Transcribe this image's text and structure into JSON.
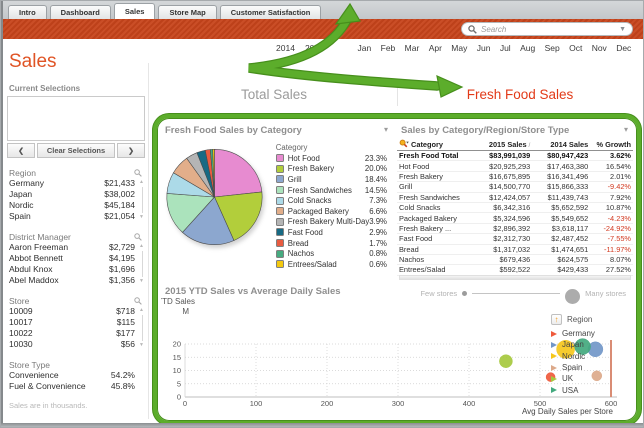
{
  "icons": {
    "caret_down": "▾",
    "dropdown_arrow": "▼",
    "chevron_left": "❮",
    "chevron_right": "❯",
    "scroll_up": "▲",
    "scroll_down": "▼",
    "sort_ascending": "/",
    "region_legend_arrow": "↑"
  },
  "window": {
    "tabs": [
      {
        "label": "Intro",
        "active": false
      },
      {
        "label": "Dashboard",
        "active": false
      },
      {
        "label": "Sales",
        "active": true
      },
      {
        "label": "Store Map",
        "active": false
      },
      {
        "label": "Customer Satisfaction",
        "active": false
      }
    ],
    "search": {
      "placeholder": "Search"
    }
  },
  "period": {
    "years": [
      "2014",
      "2015"
    ],
    "months": [
      "Jan",
      "Feb",
      "Mar",
      "Apr",
      "May",
      "Jun",
      "Jul",
      "Aug",
      "Sep",
      "Oct",
      "Nov",
      "Dec"
    ]
  },
  "sidebar": {
    "page_title": "Sales",
    "current_selections": {
      "label": "Current Selections",
      "clear_button": "Clear Selections"
    },
    "sections": [
      {
        "title": "Region",
        "searchable": true,
        "scrollable": true,
        "items": [
          {
            "label": "Germany",
            "value": "$21,433"
          },
          {
            "label": "Japan",
            "value": "$38,002"
          },
          {
            "label": "Nordic",
            "value": "$45,184"
          },
          {
            "label": "Spain",
            "value": "$21,054"
          }
        ]
      },
      {
        "title": "District Manager",
        "searchable": true,
        "scrollable": true,
        "items": [
          {
            "label": "Aaron Freeman",
            "value": "$2,729"
          },
          {
            "label": "Abbot Bennett",
            "value": "$4,195"
          },
          {
            "label": "Abdul Knox",
            "value": "$1,696"
          },
          {
            "label": "Abel Maddox",
            "value": "$1,356"
          }
        ]
      },
      {
        "title": "Store",
        "searchable": true,
        "scrollable": true,
        "items": [
          {
            "label": "10009",
            "value": "$718"
          },
          {
            "label": "10017",
            "value": "$115"
          },
          {
            "label": "10022",
            "value": "$177"
          },
          {
            "label": "10030",
            "value": "$56"
          }
        ]
      },
      {
        "title": "Store Type",
        "searchable": false,
        "scrollable": false,
        "items": [
          {
            "label": "Convenience",
            "value": "54.2%"
          },
          {
            "label": "Fuel & Convenience",
            "value": "45.8%"
          }
        ]
      }
    ],
    "footnote": "Sales are in thousands."
  },
  "main": {
    "view_tabs": [
      {
        "label": "Total Sales",
        "active": false
      },
      {
        "label": "Fresh Food Sales",
        "active": true
      }
    ]
  },
  "chart_data": [
    {
      "type": "pie",
      "title": "Fresh Food Sales by Category",
      "legend_title": "Category",
      "categories": [
        "Hot Food",
        "Fresh Bakery",
        "Grill",
        "Fresh Sandwiches",
        "Cold Snacks",
        "Packaged Bakery",
        "Fresh Bakery Multi-Day",
        "Fast Food",
        "Bread",
        "Nachos",
        "Entrees/Salad"
      ],
      "values": [
        23.3,
        20.0,
        18.4,
        14.5,
        7.3,
        6.6,
        3.9,
        2.9,
        1.7,
        0.8,
        0.6
      ],
      "labels": [
        "23.3%",
        "20.0%",
        "18.4%",
        "14.5%",
        "7.3%",
        "6.6%",
        "3.9%",
        "2.9%",
        "1.7%",
        "0.8%",
        "0.6%"
      ],
      "colors": [
        "#E78BD0",
        "#B2CE3B",
        "#8CA7CF",
        "#ABE3BC",
        "#ACDAE8",
        "#E2AE8A",
        "#B5B5B5",
        "#176A84",
        "#E85B40",
        "#46AB80",
        "#F4C90F"
      ]
    },
    {
      "type": "table",
      "title": "Sales by Category/Region/Store Type",
      "columns": [
        "Category",
        "2015 Sales",
        "2014 Sales",
        "% Growth"
      ],
      "rows": [
        {
          "category": "Fresh Food Total",
          "sales_2015": "$83,991,039",
          "sales_2014": "$80,947,423",
          "growth": "3.62%",
          "total": true
        },
        {
          "category": "Hot Food",
          "sales_2015": "$20,925,293",
          "sales_2014": "$17,463,380",
          "growth": "16.54%",
          "total": false
        },
        {
          "category": "Fresh Bakery",
          "sales_2015": "$16,675,895",
          "sales_2014": "$16,341,496",
          "growth": "2.01%",
          "total": false
        },
        {
          "category": "Grill",
          "sales_2015": "$14,500,770",
          "sales_2014": "$15,866,333",
          "growth": "-9.42%",
          "total": false
        },
        {
          "category": "Fresh Sandwiches",
          "sales_2015": "$12,424,057",
          "sales_2014": "$11,439,743",
          "growth": "7.92%",
          "total": false
        },
        {
          "category": "Cold Snacks",
          "sales_2015": "$6,342,316",
          "sales_2014": "$5,652,592",
          "growth": "10.87%",
          "total": false
        },
        {
          "category": "Packaged Bakery",
          "sales_2015": "$5,324,596",
          "sales_2014": "$5,549,652",
          "growth": "-4.23%",
          "total": false
        },
        {
          "category": "Fresh Bakery ...",
          "sales_2015": "$2,896,392",
          "sales_2014": "$3,618,117",
          "growth": "-24.92%",
          "total": false
        },
        {
          "category": "Fast Food",
          "sales_2015": "$2,312,730",
          "sales_2014": "$2,487,452",
          "growth": "-7.55%",
          "total": false
        },
        {
          "category": "Bread",
          "sales_2015": "$1,317,032",
          "sales_2014": "$1,474,651",
          "growth": "-11.97%",
          "total": false
        },
        {
          "category": "Nachos",
          "sales_2015": "$679,436",
          "sales_2014": "$624,575",
          "growth": "8.07%",
          "total": false
        },
        {
          "category": "Entrees/Salad",
          "sales_2015": "$592,522",
          "sales_2014": "$429,433",
          "growth": "27.52%",
          "total": false
        }
      ]
    },
    {
      "type": "scatter",
      "title": "2015 YTD Sales vs Average Daily Sales",
      "ylabel": "YTD Sales",
      "y_unit": "M",
      "xlabel": "Avg Daily Sales per Store",
      "xlim": [
        0,
        650
      ],
      "ylim": [
        0,
        22
      ],
      "x_ticks": [
        0,
        100,
        200,
        300,
        400,
        500,
        600
      ],
      "y_ticks": [
        0,
        5,
        10,
        15,
        20
      ],
      "grid": true,
      "reference_line_x": 600,
      "size_legend": {
        "small": "Few stores",
        "large": "Many stores"
      },
      "legend_title": "Region",
      "points": [
        {
          "name": "Germany",
          "x": 515,
          "y": 7.5,
          "r": 4.5,
          "color": "#EF5A3C"
        },
        {
          "name": "Japan",
          "x": 578,
          "y": 18,
          "r": 7.5,
          "color": "#7297C8"
        },
        {
          "name": "Nordic",
          "x": 536,
          "y": 18,
          "r": 9,
          "color": "#F5C71C"
        },
        {
          "name": "Spain",
          "x": 580,
          "y": 8,
          "r": 5,
          "color": "#DCA98A"
        },
        {
          "name": "UK",
          "x": 452,
          "y": 13.5,
          "r": 6.5,
          "color": "#A6C93E"
        },
        {
          "name": "USA",
          "x": 560,
          "y": 19,
          "r": 8,
          "color": "#43A97E"
        }
      ]
    }
  ]
}
